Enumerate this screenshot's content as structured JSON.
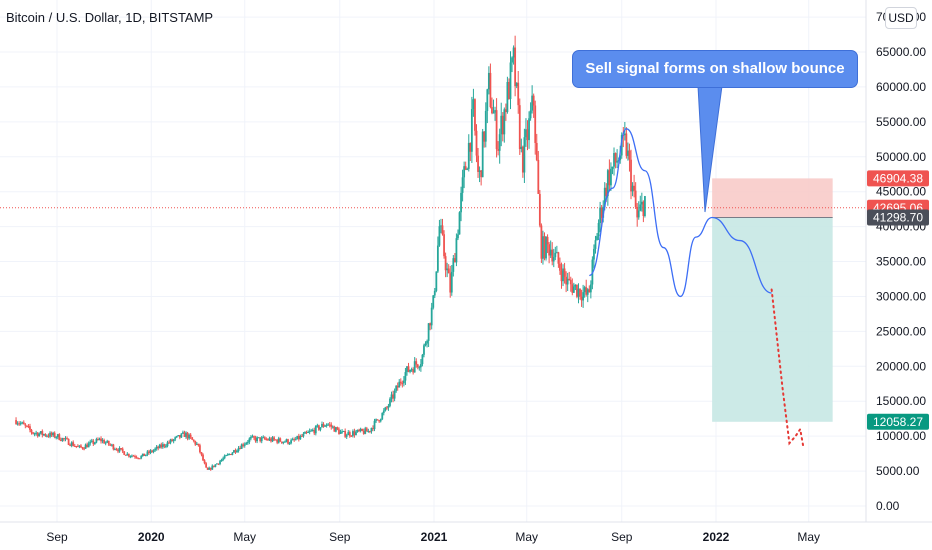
{
  "header": {
    "symbol_title": "Bitcoin / U.S. Dollar, 1D, BITSTAMP",
    "currency": "USD"
  },
  "annotation": {
    "callout_text": "Sell signal forms on shallow bounce"
  },
  "colors": {
    "up_candle": "#26a69a",
    "down_candle": "#ef5350",
    "projection_line": "#3d6ef5",
    "callout_bg": "#5b8dee",
    "stop_zone": "#f8c8c6",
    "target_zone": "#c7e8e4",
    "price_line": "#ef5350",
    "grid": "#f0f3fa"
  },
  "chart_data": {
    "type": "candlestick",
    "title": "Bitcoin / U.S. Dollar, 1D, BITSTAMP",
    "ylim": [
      0,
      70000
    ],
    "y_scale": "linear",
    "y_ticks": [
      "0.00",
      "5000.00",
      "10000.00",
      "15000.00",
      "20000.00",
      "25000.00",
      "30000.00",
      "35000.00",
      "40000.00",
      "45000.00",
      "50000.00",
      "55000.00",
      "60000.00",
      "65000.00",
      "70000.00"
    ],
    "x_ticks": [
      {
        "label": "Sep",
        "date": "2019-09-01",
        "bold": false
      },
      {
        "label": "2020",
        "date": "2020-01-01",
        "bold": true
      },
      {
        "label": "May",
        "date": "2020-05-01",
        "bold": false
      },
      {
        "label": "Sep",
        "date": "2020-09-01",
        "bold": false
      },
      {
        "label": "2021",
        "date": "2021-01-01",
        "bold": true
      },
      {
        "label": "May",
        "date": "2021-05-01",
        "bold": false
      },
      {
        "label": "Sep",
        "date": "2021-09-01",
        "bold": false
      },
      {
        "label": "2022",
        "date": "2022-01-01",
        "bold": true
      },
      {
        "label": "May",
        "date": "2022-05-01",
        "bold": false
      }
    ],
    "grid": true,
    "price_path": [
      [
        "2019-07-10",
        12300
      ],
      [
        "2019-08-01",
        10500
      ],
      [
        "2019-09-01",
        10000
      ],
      [
        "2019-10-01",
        8300
      ],
      [
        "2019-10-27",
        9500
      ],
      [
        "2019-12-01",
        7400
      ],
      [
        "2019-12-18",
        7000
      ],
      [
        "2020-01-15",
        8600
      ],
      [
        "2020-02-14",
        10300
      ],
      [
        "2020-03-01",
        8700
      ],
      [
        "2020-03-13",
        5000
      ],
      [
        "2020-04-01",
        6600
      ],
      [
        "2020-05-08",
        9600
      ],
      [
        "2020-06-01",
        9500
      ],
      [
        "2020-07-01",
        9200
      ],
      [
        "2020-08-15",
        11800
      ],
      [
        "2020-09-05",
        10300
      ],
      [
        "2020-10-08",
        10700
      ],
      [
        "2020-10-31",
        13800
      ],
      [
        "2020-11-24",
        19000
      ],
      [
        "2020-12-16",
        21000
      ],
      [
        "2020-12-31",
        29000
      ],
      [
        "2021-01-08",
        40000
      ],
      [
        "2021-01-22",
        31000
      ],
      [
        "2021-02-08",
        46500
      ],
      [
        "2021-02-21",
        56000
      ],
      [
        "2021-02-28",
        46000
      ],
      [
        "2021-03-13",
        60000
      ],
      [
        "2021-03-25",
        52000
      ],
      [
        "2021-04-14",
        63500
      ],
      [
        "2021-04-25",
        49000
      ],
      [
        "2021-05-10",
        58000
      ],
      [
        "2021-05-19",
        37000
      ],
      [
        "2021-06-01",
        37000
      ],
      [
        "2021-06-22",
        32000
      ],
      [
        "2021-07-20",
        30000
      ],
      [
        "2021-08-01",
        40000
      ],
      [
        "2021-08-14",
        47000
      ],
      [
        "2021-09-06",
        52000
      ],
      [
        "2021-09-21",
        41000
      ],
      [
        "2021-10-01",
        44000
      ]
    ],
    "last_price": 42695.06,
    "projection_path": [
      [
        "2021-07-21",
        33000
      ],
      [
        "2021-08-20",
        45500
      ],
      [
        "2021-09-07",
        54000
      ],
      [
        "2021-10-01",
        48000
      ],
      [
        "2021-10-25",
        37000
      ],
      [
        "2021-11-16",
        30000
      ],
      [
        "2021-12-06",
        38500
      ],
      [
        "2021-12-27",
        41300
      ],
      [
        "2022-02-01",
        38000
      ],
      [
        "2022-03-14",
        30500
      ]
    ],
    "dotted_projection": [
      [
        "2022-03-14",
        31000
      ],
      [
        "2022-03-21",
        24000
      ],
      [
        "2022-03-28",
        17000
      ],
      [
        "2022-04-06",
        9000
      ],
      [
        "2022-04-14",
        10000
      ],
      [
        "2022-04-20",
        11000
      ],
      [
        "2022-04-24",
        8500
      ]
    ],
    "position": {
      "type": "short",
      "entry": 41298.7,
      "stop": 46904.38,
      "target": 12058.27,
      "start": "2021-12-27",
      "end": "2022-06-01"
    },
    "price_labels": [
      {
        "value": 46904.38,
        "text": "46904.38",
        "color": "#ef5350"
      },
      {
        "value": 42695.06,
        "text": "42695.06",
        "color": "#ef5350"
      },
      {
        "value": 41298.7,
        "text": "41298.70",
        "color": "#4a4e59"
      },
      {
        "value": 12058.27,
        "text": "12058.27",
        "color": "#089981"
      }
    ]
  }
}
